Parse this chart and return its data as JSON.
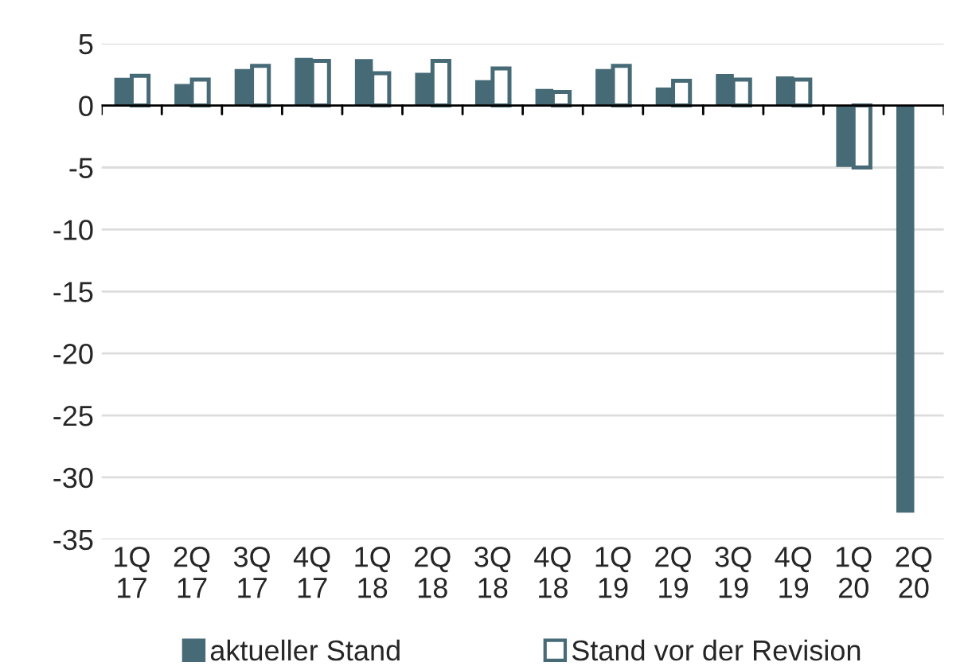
{
  "chart_data": {
    "type": "bar",
    "categories": [
      "1Q\n17",
      "2Q\n17",
      "3Q\n17",
      "4Q\n17",
      "1Q\n18",
      "2Q\n18",
      "3Q\n18",
      "4Q\n18",
      "1Q\n19",
      "2Q\n19",
      "3Q\n19",
      "4Q\n19",
      "1Q\n20",
      "2Q\n20"
    ],
    "series": [
      {
        "name": "aktueller Stand",
        "color": "#466a76",
        "values": [
          2.2,
          1.7,
          2.9,
          3.8,
          3.7,
          2.6,
          2.0,
          1.3,
          2.9,
          1.4,
          2.5,
          2.3,
          -4.9,
          -32.8
        ]
      },
      {
        "name": "Stand vor der Revision",
        "color": "#ffffff",
        "values": [
          2.4,
          2.1,
          3.2,
          3.6,
          2.6,
          3.6,
          3.0,
          1.1,
          3.2,
          2.0,
          2.1,
          2.1,
          -5.0,
          null
        ]
      }
    ],
    "ylim": [
      -35,
      5
    ],
    "yticks": [
      -35,
      -30,
      -25,
      -20,
      -15,
      -10,
      -5,
      0,
      5
    ],
    "grid": "y",
    "legend": "bottom"
  }
}
